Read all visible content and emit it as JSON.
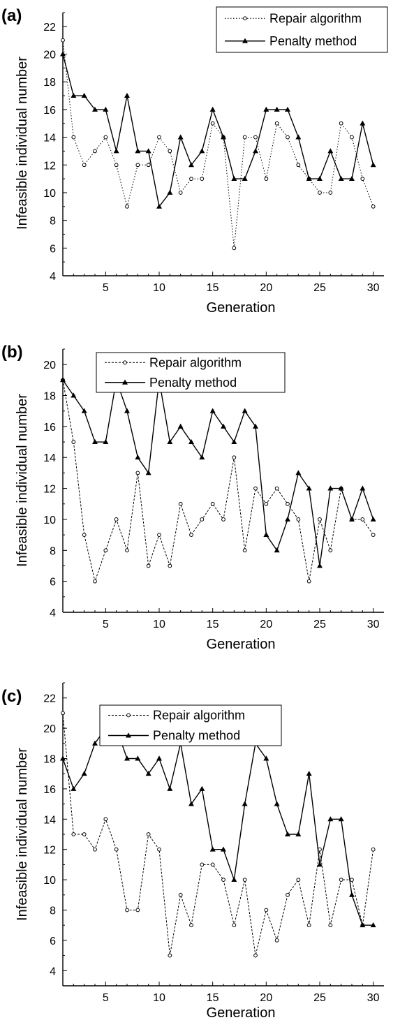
{
  "chart_data": [
    {
      "type": "line",
      "panel_label": "(a)",
      "xlabel": "Generation",
      "ylabel": "Infeasible individual number",
      "xlim": [
        1,
        31
      ],
      "ylim": [
        4,
        23
      ],
      "xticks": [
        5,
        10,
        15,
        20,
        25,
        30
      ],
      "yticks": [
        4,
        6,
        8,
        10,
        12,
        14,
        16,
        18,
        20,
        22
      ],
      "legend_position": "top-right",
      "x": [
        1,
        2,
        3,
        4,
        5,
        6,
        7,
        8,
        9,
        10,
        11,
        12,
        13,
        14,
        15,
        16,
        17,
        18,
        19,
        20,
        21,
        22,
        23,
        24,
        25,
        26,
        27,
        28,
        29,
        30
      ],
      "series": [
        {
          "name": "Repair algorithm",
          "style": "dotted-open-circle",
          "values": [
            21,
            14,
            12,
            13,
            14,
            12,
            9,
            12,
            12,
            14,
            13,
            10,
            11,
            11,
            15,
            14,
            6,
            14,
            14,
            11,
            15,
            14,
            12,
            11,
            10,
            10,
            15,
            14,
            11,
            9
          ]
        },
        {
          "name": "Penalty method",
          "style": "solid-filled-triangle",
          "values": [
            20,
            17,
            17,
            16,
            16,
            13,
            17,
            13,
            13,
            9,
            10,
            14,
            12,
            13,
            16,
            14,
            11,
            11,
            13,
            16,
            16,
            16,
            14,
            11,
            11,
            13,
            11,
            11,
            15,
            12
          ]
        }
      ]
    },
    {
      "type": "line",
      "panel_label": "(b)",
      "xlabel": "Generation",
      "ylabel": "Infeasible individual number",
      "xlim": [
        1,
        31
      ],
      "ylim": [
        4,
        21
      ],
      "xticks": [
        5,
        10,
        15,
        20,
        25,
        30
      ],
      "yticks": [
        4,
        6,
        8,
        10,
        12,
        14,
        16,
        18,
        20
      ],
      "legend_position": "top-center",
      "x": [
        1,
        2,
        3,
        4,
        5,
        6,
        7,
        8,
        9,
        10,
        11,
        12,
        13,
        14,
        15,
        16,
        17,
        18,
        19,
        20,
        21,
        22,
        23,
        24,
        25,
        26,
        27,
        28,
        29,
        30
      ],
      "series": [
        {
          "name": "Repair algorithm",
          "style": "dashed-open-circle",
          "values": [
            19,
            15,
            9,
            6,
            8,
            10,
            8,
            13,
            7,
            9,
            7,
            11,
            9,
            10,
            11,
            10,
            14,
            8,
            12,
            11,
            12,
            11,
            10,
            6,
            10,
            8,
            12,
            10,
            10,
            9
          ]
        },
        {
          "name": "Penalty method",
          "style": "solid-filled-triangle",
          "values": [
            19,
            18,
            17,
            15,
            15,
            19,
            17,
            14,
            13,
            19,
            15,
            16,
            15,
            14,
            17,
            16,
            15,
            17,
            16,
            9,
            8,
            10,
            13,
            12,
            7,
            12,
            12,
            10,
            12,
            10
          ]
        }
      ]
    },
    {
      "type": "line",
      "panel_label": "(c)",
      "xlabel": "Generation",
      "ylabel": "Infeasible individual number",
      "xlim": [
        1,
        31
      ],
      "ylim": [
        3,
        23
      ],
      "xticks": [
        5,
        10,
        15,
        20,
        25,
        30
      ],
      "yticks": [
        4,
        6,
        8,
        10,
        12,
        14,
        16,
        18,
        20,
        22
      ],
      "legend_position": "top-center",
      "x": [
        1,
        2,
        3,
        4,
        5,
        6,
        7,
        8,
        9,
        10,
        11,
        12,
        13,
        14,
        15,
        16,
        17,
        18,
        19,
        20,
        21,
        22,
        23,
        24,
        25,
        26,
        27,
        28,
        29,
        30
      ],
      "series": [
        {
          "name": "Repair algorithm",
          "style": "dashed-open-circle",
          "values": [
            21,
            13,
            13,
            12,
            14,
            12,
            8,
            8,
            13,
            12,
            5,
            9,
            7,
            11,
            11,
            10,
            7,
            10,
            5,
            8,
            6,
            9,
            10,
            7,
            12,
            7,
            10,
            10,
            7,
            12
          ]
        },
        {
          "name": "Penalty method",
          "style": "solid-filled-triangle",
          "values": [
            18,
            16,
            17,
            19,
            20,
            20,
            18,
            18,
            17,
            18,
            16,
            19,
            15,
            16,
            12,
            12,
            10,
            15,
            19,
            18,
            15,
            13,
            13,
            17,
            11,
            14,
            14,
            9,
            7,
            7
          ]
        }
      ]
    }
  ]
}
